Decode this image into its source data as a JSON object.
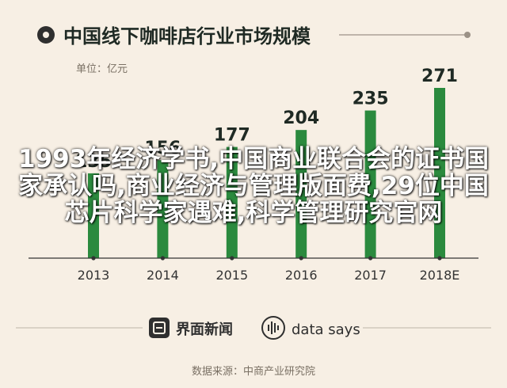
{
  "header": {
    "title": "中国线下咖啡店行业市场规模",
    "unit": "单位：亿元"
  },
  "chart_data": {
    "type": "bar",
    "title": "中国线下咖啡店行业市场规模",
    "ylabel": "单位：亿元",
    "categories": [
      "2013",
      "2014",
      "2015",
      "2016",
      "2017",
      "2018E"
    ],
    "values": [
      135,
      156,
      177,
      204,
      235,
      271
    ],
    "ylim": [
      0,
      271
    ],
    "grid": false,
    "legend": "none"
  },
  "footer": {
    "brand_cn": "界面新闻",
    "brand_en": "data says",
    "source": "数据来源：中商产业研究院"
  },
  "overlay_text": "1993年经济学书,中国商业联合会的证书国家承认吗,商业经济与管理版面费,29位中国芯片科学家遇难,科学管理研究官网",
  "colors": {
    "background": "#f7efe4",
    "bar": "#2b8a3e",
    "text_dark": "#1f2a24",
    "muted": "#7a7064",
    "axis": "#333333",
    "icon_dark": "#2f2f2f"
  }
}
